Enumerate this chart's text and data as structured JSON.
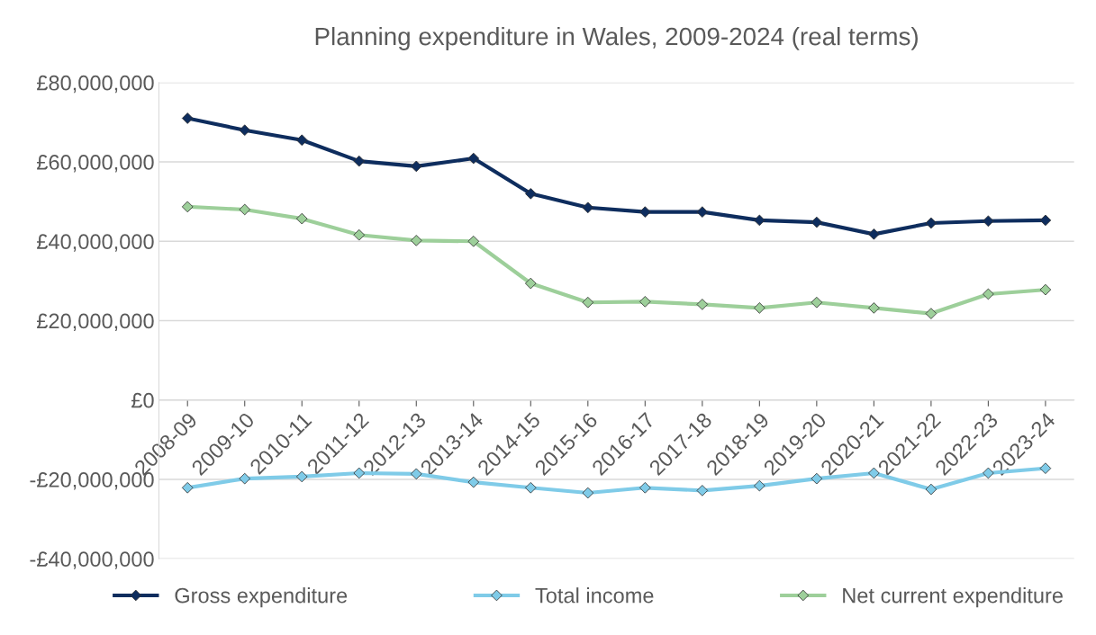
{
  "chart_data": {
    "type": "line",
    "title": "Planning expenditure in Wales, 2009-2024 (real terms)",
    "categories": [
      "2008-09",
      "2009-10",
      "2010-11",
      "2011-12",
      "2012-13",
      "2013-14",
      "2014-15",
      "2015-16",
      "2016-17",
      "2017-18",
      "2018-19",
      "2019-20",
      "2020-21",
      "2021-22",
      "2022-23",
      "2023-24"
    ],
    "series": [
      {
        "name": "Gross expenditure",
        "color": "#0e2d5e",
        "values": [
          71000000,
          68000000,
          65500000,
          60200000,
          58900000,
          60900000,
          52000000,
          48500000,
          47400000,
          47400000,
          45300000,
          44800000,
          41800000,
          44600000,
          45100000,
          45300000
        ]
      },
      {
        "name": "Total income",
        "color": "#7fcbe8",
        "values": [
          -22100000,
          -19800000,
          -19300000,
          -18400000,
          -18600000,
          -20700000,
          -22100000,
          -23400000,
          -22100000,
          -22800000,
          -21600000,
          -19800000,
          -18400000,
          -22500000,
          -18400000,
          -17200000
        ]
      },
      {
        "name": "Net current expenditure",
        "color": "#9dcf9a",
        "values": [
          48700000,
          48000000,
          45700000,
          41600000,
          40200000,
          40000000,
          29400000,
          24600000,
          24800000,
          24100000,
          23200000,
          24600000,
          23200000,
          21800000,
          26700000,
          27800000
        ]
      }
    ],
    "ylim": [
      -40000000,
      80000000
    ],
    "yticks": [
      {
        "value": -40000000,
        "label": "-£40,000,000"
      },
      {
        "value": -20000000,
        "label": "-£20,000,000"
      },
      {
        "value": 0,
        "label": "£0"
      },
      {
        "value": 20000000,
        "label": "£20,000,000"
      },
      {
        "value": 40000000,
        "label": "£40,000,000"
      },
      {
        "value": 60000000,
        "label": "£60,000,000"
      },
      {
        "value": 80000000,
        "label": "£80,000,000"
      }
    ],
    "grid": "y",
    "legend": "bottom",
    "marker": "diamond",
    "line_style": "solid"
  }
}
